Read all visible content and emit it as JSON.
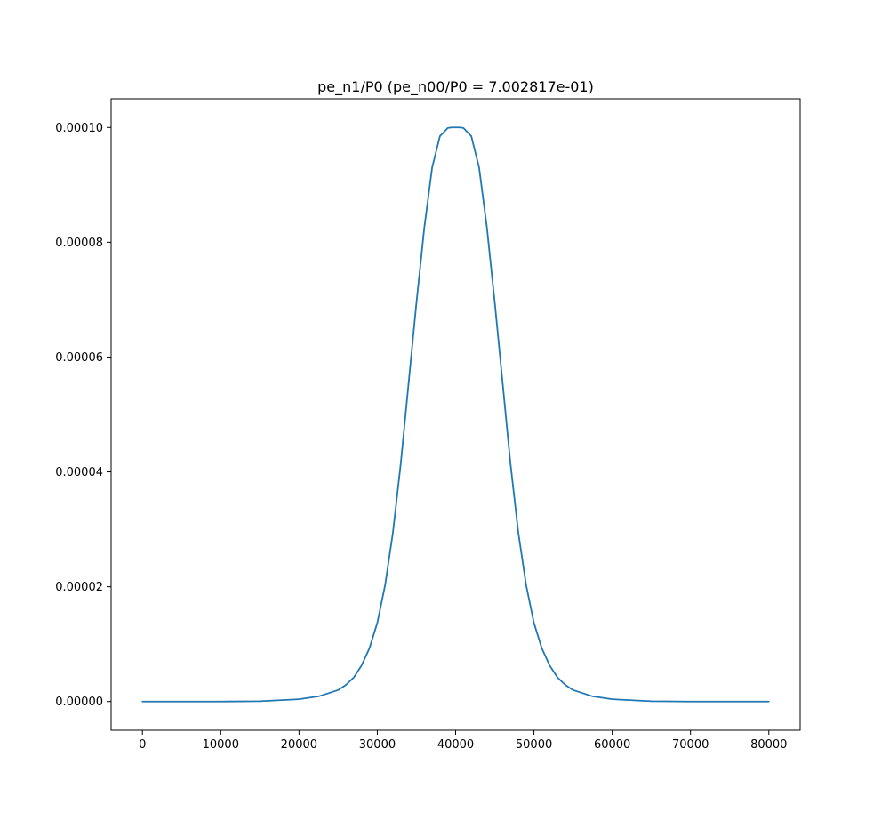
{
  "chart_data": {
    "type": "line",
    "title": "pe_n1/P0 (pe_n00/P0 = 7.002817e-01)",
    "xlabel": "",
    "ylabel": "",
    "xlim": [
      -4000,
      84000
    ],
    "ylim": [
      -5e-06,
      0.000105
    ],
    "x_ticks": [
      0,
      10000,
      20000,
      30000,
      40000,
      50000,
      60000,
      70000,
      80000
    ],
    "x_tick_labels": [
      "0",
      "10000",
      "20000",
      "30000",
      "40000",
      "50000",
      "60000",
      "70000",
      "80000"
    ],
    "y_ticks": [
      0,
      2e-05,
      4e-05,
      6e-05,
      8e-05,
      0.0001
    ],
    "y_tick_labels": [
      "0.00000",
      "0.00002",
      "0.00004",
      "0.00006",
      "0.00008",
      "0.00010"
    ],
    "grid": false,
    "line_color": "#1f77b4",
    "series": [
      {
        "x": [
          0,
          5000,
          10000,
          15000,
          20000,
          22500,
          25000,
          26000,
          27000,
          28000,
          29000,
          30000,
          31000,
          32000,
          33000,
          34000,
          35000,
          36000,
          37000,
          38000,
          39000,
          39500,
          40000,
          40500,
          41000,
          42000,
          43000,
          44000,
          45000,
          46000,
          47000,
          48000,
          49000,
          50000,
          51000,
          52000,
          53000,
          54000,
          55000,
          57500,
          60000,
          65000,
          70000,
          75000,
          80000
        ],
        "y": [
          0,
          0,
          0,
          5e-08,
          4e-07,
          9e-07,
          2e-06,
          2.9e-06,
          4.2e-06,
          6.3e-06,
          9.3e-06,
          1.37e-05,
          2.03e-05,
          2.95e-05,
          4.15e-05,
          5.55e-05,
          6.95e-05,
          8.25e-05,
          9.3e-05,
          9.85e-05,
          9.99e-05,
          0.0001,
          0.0001,
          0.0001,
          9.99e-05,
          9.85e-05,
          9.3e-05,
          8.25e-05,
          6.95e-05,
          5.55e-05,
          4.15e-05,
          2.95e-05,
          2.03e-05,
          1.37e-05,
          9.3e-06,
          6.3e-06,
          4.2e-06,
          2.9e-06,
          2e-06,
          9e-07,
          4e-07,
          5e-08,
          0,
          0,
          0
        ]
      }
    ]
  }
}
